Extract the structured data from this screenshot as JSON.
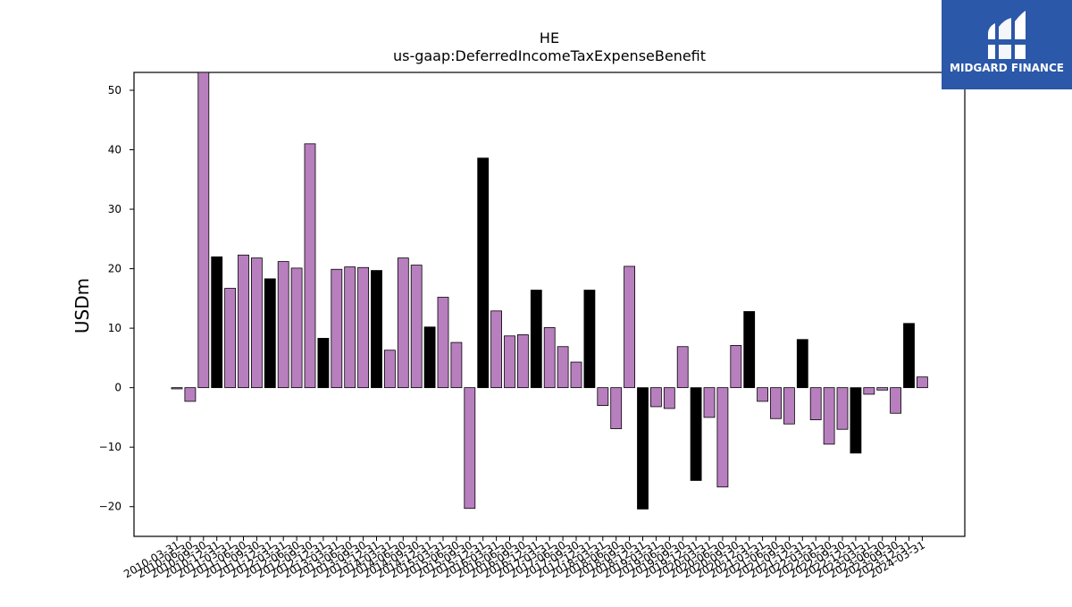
{
  "logo": {
    "text": "MIDGARD FINANCE",
    "bg_color": "#2b58a8"
  },
  "colors": {
    "bar_default": "#b87fbf",
    "bar_q4": "#000000",
    "axis": "#000000"
  },
  "chart_data": {
    "type": "bar",
    "title": "HE",
    "subtitle": "us-gaap:DeferredIncomeTaxExpenseBenefit",
    "xlabel": "",
    "ylabel": "USDm",
    "ylim": [
      -25,
      53
    ],
    "yticks": [
      -20,
      -10,
      0,
      10,
      20,
      30,
      40,
      50
    ],
    "grid": false,
    "categories": [
      "2010-03-31",
      "2010-06-30",
      "2010-09-30",
      "2010-12-31",
      "2011-03-31",
      "2011-06-30",
      "2011-09-30",
      "2011-12-31",
      "2012-03-31",
      "2012-06-30",
      "2012-09-30",
      "2012-12-31",
      "2013-03-31",
      "2013-06-30",
      "2013-09-30",
      "2013-12-31",
      "2014-03-31",
      "2014-06-30",
      "2014-09-30",
      "2014-12-31",
      "2015-03-31",
      "2015-06-30",
      "2015-09-30",
      "2015-12-31",
      "2016-03-31",
      "2016-06-30",
      "2016-09-30",
      "2016-12-31",
      "2017-03-31",
      "2017-06-30",
      "2017-09-30",
      "2017-12-31",
      "2018-03-31",
      "2018-06-30",
      "2018-09-30",
      "2018-12-31",
      "2019-03-31",
      "2019-06-30",
      "2019-09-30",
      "2019-12-31",
      "2020-03-31",
      "2020-06-30",
      "2020-09-30",
      "2020-12-31",
      "2021-03-31",
      "2021-06-30",
      "2021-09-30",
      "2021-12-31",
      "2022-03-31",
      "2022-06-30",
      "2022-09-30",
      "2022-12-31",
      "2023-03-31",
      "2023-06-30",
      "2023-09-30",
      "2023-12-31",
      "2024-03-31"
    ],
    "values": [
      -0.2,
      -2.3,
      54.0,
      22.0,
      16.7,
      22.3,
      21.8,
      18.3,
      21.2,
      20.1,
      41.0,
      8.3,
      19.9,
      20.3,
      20.2,
      19.7,
      6.3,
      21.8,
      20.6,
      10.2,
      15.2,
      7.6,
      -20.3,
      38.6,
      12.9,
      8.7,
      8.9,
      16.4,
      10.1,
      6.9,
      4.3,
      16.4,
      -3.0,
      -6.9,
      20.4,
      -20.4,
      -3.2,
      -3.5,
      6.9,
      -15.6,
      -5.0,
      -16.7,
      7.1,
      12.8,
      -2.3,
      -5.2,
      -6.1,
      8.1,
      -5.4,
      -9.5,
      -7.0,
      -11.0,
      -1.1,
      -0.4,
      -4.3,
      10.8,
      1.8
    ],
    "highlight_rule": "Q4 (December) bars are black; all others purple"
  }
}
